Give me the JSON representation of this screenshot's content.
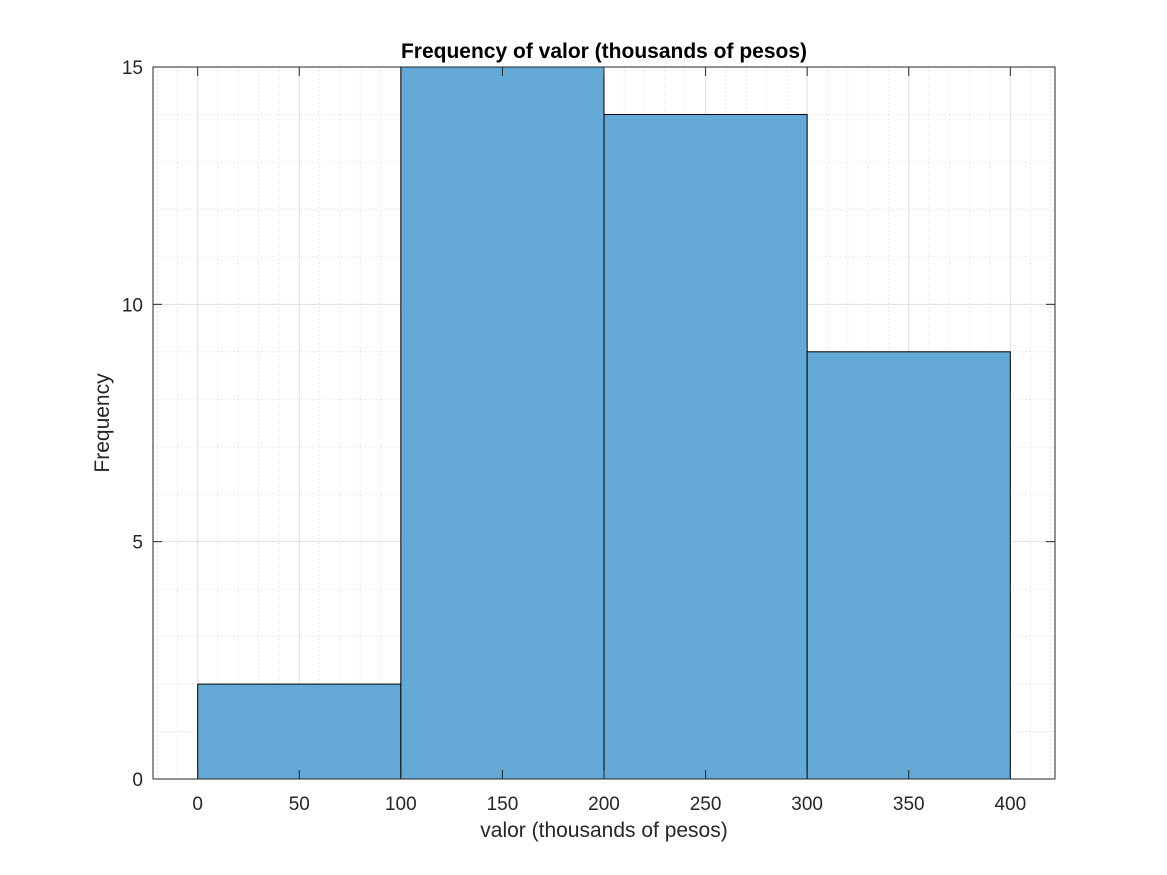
{
  "chart_data": {
    "type": "bar",
    "title": "Frequency of valor (thousands of pesos)",
    "xlabel": "valor (thousands of pesos)",
    "ylabel": "Frequency",
    "bins": [
      {
        "start": 0,
        "end": 100,
        "value": 2
      },
      {
        "start": 100,
        "end": 200,
        "value": 15
      },
      {
        "start": 200,
        "end": 300,
        "value": 14
      },
      {
        "start": 300,
        "end": 400,
        "value": 9
      }
    ],
    "xlim": [
      -22,
      422
    ],
    "ylim": [
      0,
      15
    ],
    "xticks": [
      "0",
      "50",
      "100",
      "150",
      "200",
      "250",
      "300",
      "350",
      "400"
    ],
    "yticks": [
      "0",
      "5",
      "10",
      "15"
    ],
    "grid": true,
    "minor_grid": true,
    "bar_color": "#65a9d7",
    "bar_edge_color": "#000000"
  }
}
